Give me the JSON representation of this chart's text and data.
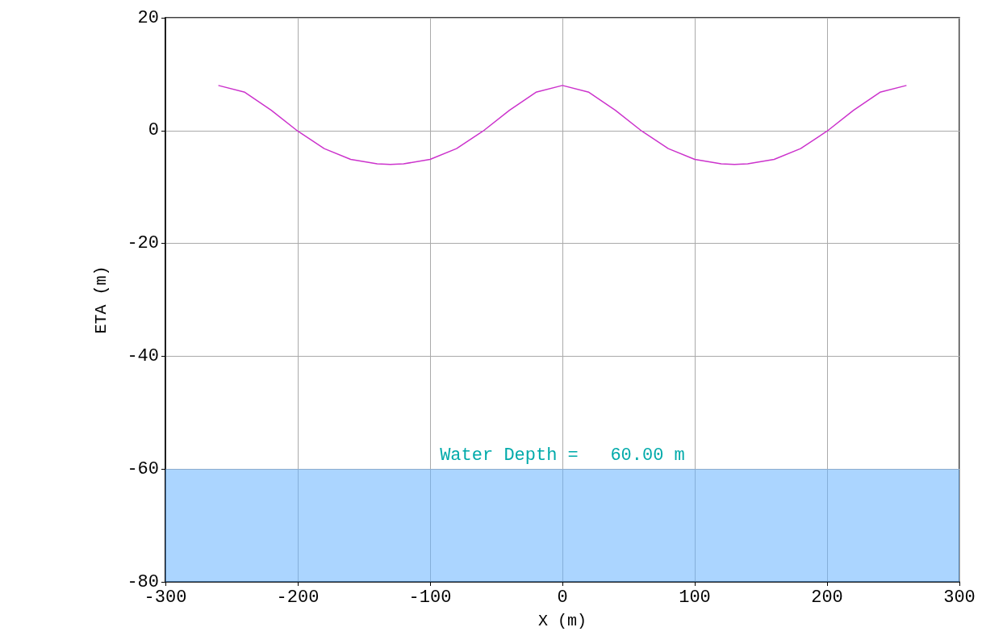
{
  "chart_data": {
    "type": "line",
    "xlabel": "X (m)",
    "ylabel": "ETA (m)",
    "x": [
      -260,
      -240,
      -220,
      -200,
      -180,
      -160,
      -140,
      -130,
      -120,
      -100,
      -80,
      -60,
      -40,
      -20,
      0,
      20,
      40,
      60,
      80,
      100,
      120,
      130,
      140,
      160,
      180,
      200,
      220,
      240,
      260
    ],
    "series": [
      {
        "color": "#cc33cc",
        "values": [
          8,
          6.8,
          3.6,
          -0.1,
          -3.2,
          -5.1,
          -5.9,
          -6,
          -5.9,
          -5.1,
          -3.2,
          -0.1,
          3.6,
          6.8,
          8,
          6.8,
          3.6,
          -0.1,
          -3.2,
          -5.1,
          -5.9,
          -6,
          -5.9,
          -5.1,
          -3.2,
          -0.1,
          3.6,
          6.8,
          8
        ]
      }
    ],
    "xlim": [
      -300,
      300
    ],
    "xticks": [
      -300,
      -200,
      -100,
      0,
      100,
      200,
      300
    ],
    "ylim": [
      -80,
      20
    ],
    "yticks": [
      -80,
      -60,
      -40,
      -20,
      0,
      20
    ],
    "bands": [
      {
        "axis": "y",
        "from": -80,
        "to": -60,
        "label": "Water Depth =   60.00 m",
        "color": "#66b3ff"
      }
    ],
    "grid": true,
    "marker": "none",
    "line_style": "solid"
  }
}
